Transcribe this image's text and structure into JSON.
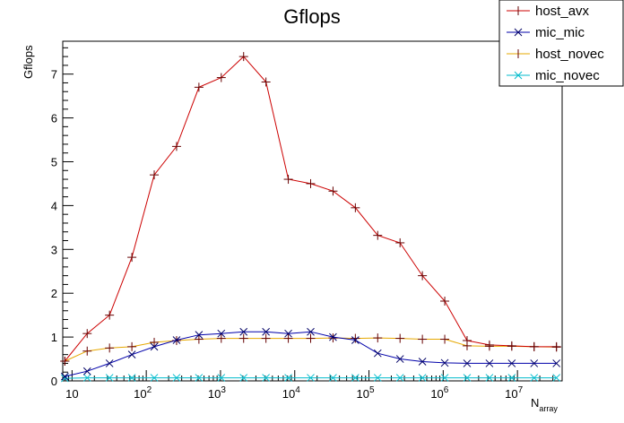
{
  "chart_data": {
    "type": "line",
    "title": "Gflops",
    "ylabel": "Gflops",
    "xlabel_main": "N",
    "xlabel_sub": "array",
    "x_scale": "log",
    "xlim": [
      7.5,
      40000000
    ],
    "ylim": [
      0,
      7.75
    ],
    "grid": false,
    "legend_position": "top-right",
    "y_ticks": [
      0,
      1,
      2,
      3,
      4,
      5,
      6,
      7
    ],
    "x_ticks": [
      {
        "value": 10,
        "base": "10",
        "exp": ""
      },
      {
        "value": 100,
        "base": "10",
        "exp": "2"
      },
      {
        "value": 1000,
        "base": "10",
        "exp": "3"
      },
      {
        "value": 10000,
        "base": "10",
        "exp": "4"
      },
      {
        "value": 100000,
        "base": "10",
        "exp": "5"
      },
      {
        "value": 1000000,
        "base": "10",
        "exp": "6"
      },
      {
        "value": 10000000,
        "base": "10",
        "exp": "7"
      }
    ],
    "x": [
      8,
      16,
      32,
      64,
      128,
      256,
      512,
      1024,
      2048,
      4096,
      8192,
      16384,
      32768,
      65536,
      131072,
      262144,
      524288,
      1048576,
      2097152,
      4194304,
      8388608,
      16777216,
      33554432
    ],
    "series": [
      {
        "name": "host_avx",
        "color": "#cc0000",
        "marker": "plus",
        "values": [
          0.45,
          1.08,
          1.5,
          2.82,
          4.7,
          5.35,
          6.7,
          6.92,
          7.4,
          6.82,
          4.6,
          4.5,
          4.33,
          3.95,
          3.32,
          3.15,
          2.4,
          1.82,
          0.92,
          0.82,
          0.8,
          0.78,
          0.78
        ]
      },
      {
        "name": "mic_mic",
        "color": "#0000aa",
        "marker": "cross",
        "values": [
          0.1,
          0.22,
          0.4,
          0.6,
          0.78,
          0.93,
          1.05,
          1.08,
          1.12,
          1.12,
          1.08,
          1.12,
          1.0,
          0.93,
          0.63,
          0.5,
          0.44,
          0.41,
          0.4,
          0.4,
          0.4,
          0.4,
          0.4
        ]
      },
      {
        "name": "host_novec",
        "color": "#e6a800",
        "marker": "plus",
        "values": [
          0.45,
          0.68,
          0.75,
          0.78,
          0.88,
          0.92,
          0.95,
          0.97,
          0.97,
          0.97,
          0.97,
          0.97,
          0.98,
          0.97,
          0.98,
          0.97,
          0.95,
          0.95,
          0.8,
          0.79,
          0.79,
          0.78,
          0.77
        ]
      },
      {
        "name": "mic_novec",
        "color": "#00bbcc",
        "marker": "cross",
        "values": [
          0.06,
          0.07,
          0.07,
          0.07,
          0.07,
          0.07,
          0.07,
          0.07,
          0.07,
          0.07,
          0.07,
          0.07,
          0.07,
          0.07,
          0.07,
          0.07,
          0.07,
          0.07,
          0.07,
          0.07,
          0.07,
          0.07,
          0.07
        ]
      }
    ]
  }
}
